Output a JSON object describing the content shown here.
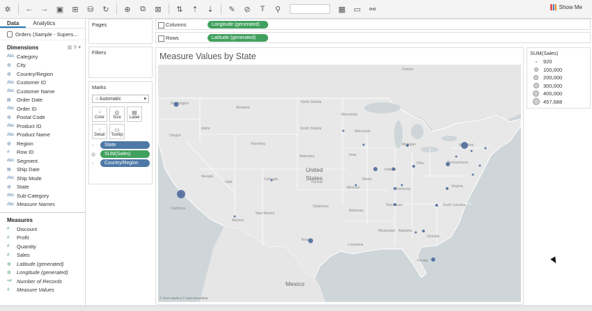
{
  "toolbar": {
    "show_me_label": "Show Me"
  },
  "data_pane": {
    "tabs": [
      {
        "label": "Data"
      },
      {
        "label": "Analytics"
      }
    ],
    "datasource": "Orders (Sample - Supers...",
    "dimensions_header": "Dimensions",
    "dimensions": [
      {
        "icon": "Abc",
        "label": "Category"
      },
      {
        "icon": "globe",
        "label": "City"
      },
      {
        "icon": "globe",
        "label": "Country/Region"
      },
      {
        "icon": "Abc",
        "label": "Customer ID"
      },
      {
        "icon": "Abc",
        "label": "Customer Name"
      },
      {
        "icon": "date",
        "label": "Order Date"
      },
      {
        "icon": "Abc",
        "label": "Order ID"
      },
      {
        "icon": "globe",
        "label": "Postal Code"
      },
      {
        "icon": "Abc",
        "label": "Product ID"
      },
      {
        "icon": "Abc",
        "label": "Product Name"
      },
      {
        "icon": "globe",
        "label": "Region"
      },
      {
        "icon": "#",
        "label": "Row ID"
      },
      {
        "icon": "Abc",
        "label": "Segment"
      },
      {
        "icon": "date",
        "label": "Ship Date"
      },
      {
        "icon": "Abc",
        "label": "Ship Mode"
      },
      {
        "icon": "globe",
        "label": "State"
      },
      {
        "icon": "Abc",
        "label": "Sub-Category"
      },
      {
        "icon": "Abc",
        "label": "Measure Names"
      }
    ],
    "measures_header": "Measures",
    "measures": [
      {
        "icon": "#",
        "label": "Discount"
      },
      {
        "icon": "#",
        "label": "Profit"
      },
      {
        "icon": "#",
        "label": "Quantity"
      },
      {
        "icon": "#",
        "label": "Sales"
      },
      {
        "icon": "globe",
        "label": "Latitude (generated)"
      },
      {
        "icon": "globe",
        "label": "Longitude (generated)"
      },
      {
        "icon": "=#",
        "label": "Number of Records"
      },
      {
        "icon": "#",
        "label": "Measure Values"
      }
    ]
  },
  "shelves": {
    "pages": "Pages",
    "filters": "Filters",
    "marks": "Marks",
    "mark_type": "Automatic",
    "mark_buttons": [
      {
        "label": "Color"
      },
      {
        "label": "Size"
      },
      {
        "label": "Label"
      },
      {
        "label": "Detail"
      },
      {
        "label": "Tooltip"
      }
    ],
    "mark_pills": [
      {
        "label": "State"
      },
      {
        "label": "SUM(Sales)"
      },
      {
        "label": "Country/Region"
      }
    ],
    "columns_label": "Columns",
    "columns_pill": "Longitude (generated)",
    "rows_label": "Rows",
    "rows_pill": "Latitude (generated)"
  },
  "view": {
    "title": "Measure Values by State",
    "credit": "© 2019 Mapbox © OpenStreetMap",
    "map_labels": [
      "Washington",
      "Montana",
      "North Dakota",
      "Minnesota",
      "Oregon",
      "Idaho",
      "South Dakota",
      "Wyoming",
      "Wisconsin",
      "Michigan",
      "New York",
      "Nebraska",
      "Iowa",
      "Nevada",
      "United",
      "States",
      "Utah",
      "Colorado",
      "Kansas",
      "Illinois",
      "Indiana",
      "Ohio",
      "Pennsylvania",
      "California",
      "Missouri",
      "Kentucky",
      "Virginia",
      "Arizona",
      "New Mexico",
      "Oklahoma",
      "Arkansas",
      "Tennessee",
      "North Carolina",
      "Texas",
      "Louisiana",
      "Georgia",
      "Mississippi",
      "Alabama",
      "Florida",
      "Mexico",
      "Ontario"
    ]
  },
  "legend": {
    "title": "SUM(Sales)",
    "items": [
      "920",
      "100,000",
      "200,000",
      "300,000",
      "400,000",
      "457,688"
    ]
  }
}
